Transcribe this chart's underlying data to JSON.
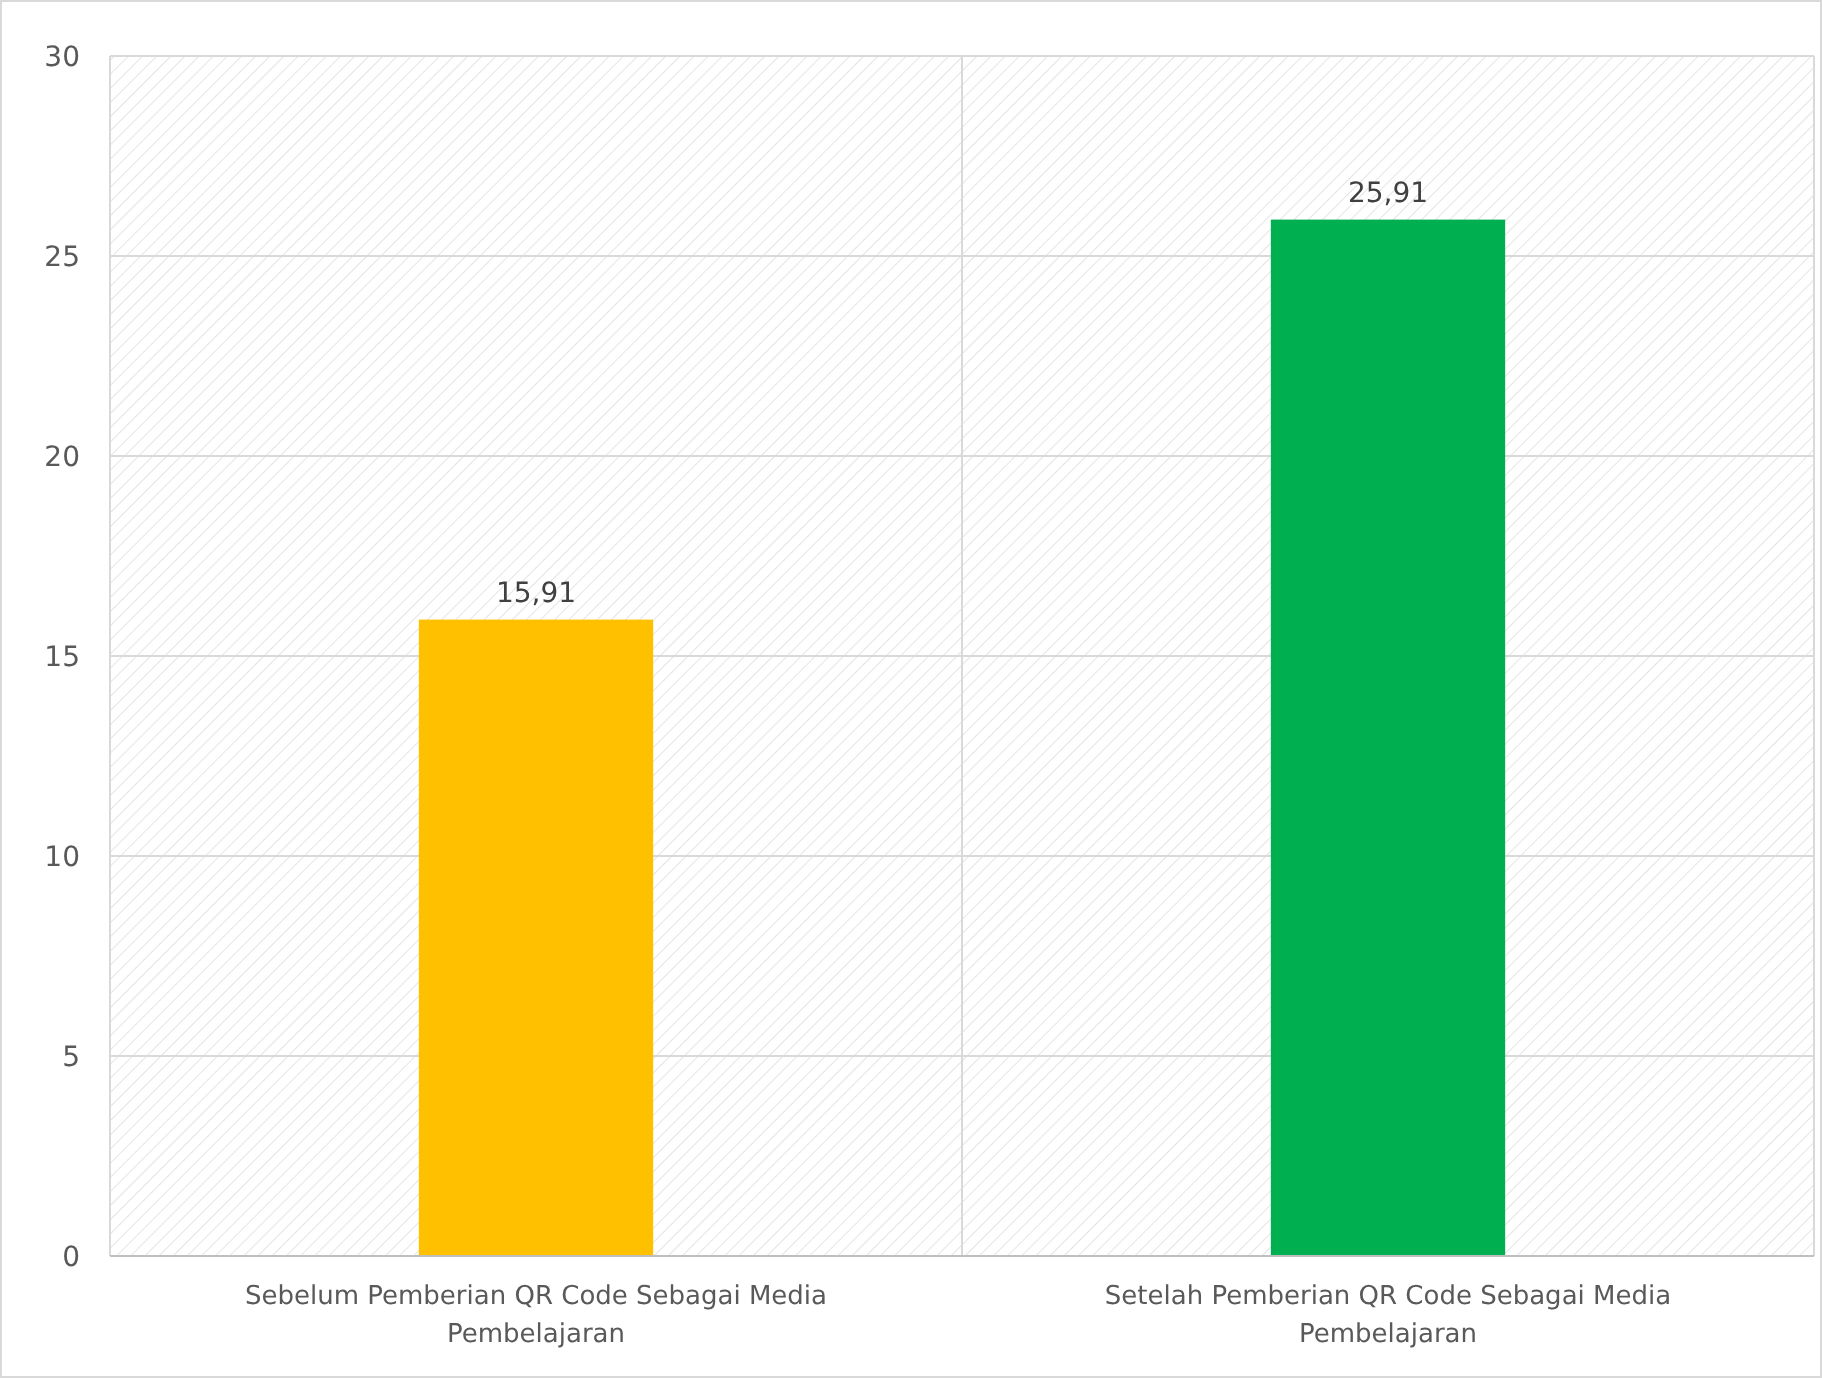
{
  "chart_data": {
    "type": "bar",
    "categories": [
      "Sebelum Pemberian QR Code Sebagai Media Pembelajaran",
      "Setelah Pemberian QR Code Sebagai Media Pembelajaran"
    ],
    "values": [
      15.91,
      25.91
    ],
    "colors": [
      "#ffc000",
      "#00b050"
    ],
    "value_labels": [
      "15,91",
      "25,91"
    ],
    "ylim": [
      0,
      30
    ],
    "yticks": [
      0,
      5,
      10,
      15,
      20,
      25,
      30
    ],
    "grid": true
  }
}
